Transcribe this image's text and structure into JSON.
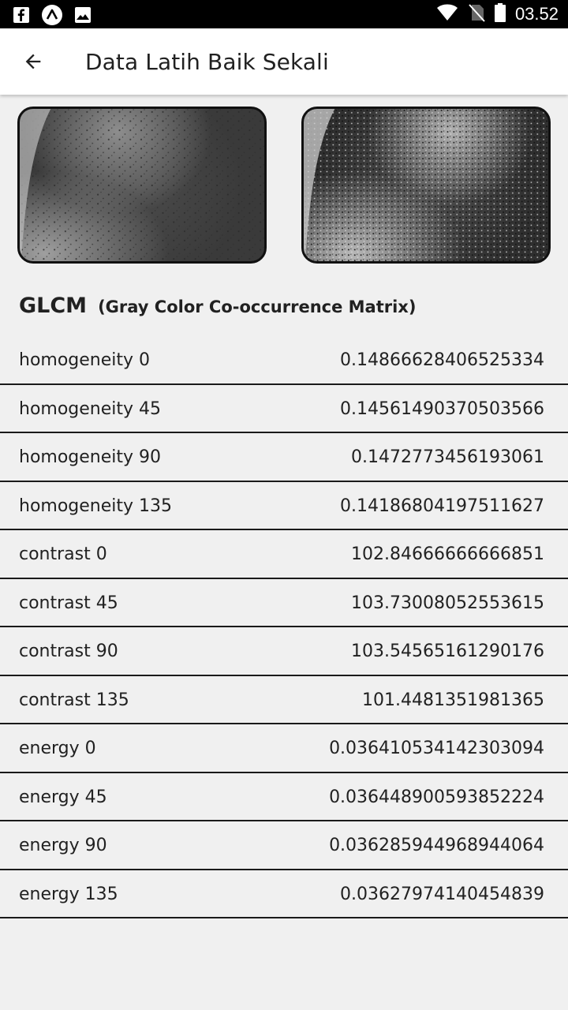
{
  "status_bar": {
    "time": "03.52",
    "icons_left": [
      "facebook-icon",
      "app-icon",
      "image-icon"
    ],
    "icons_right": [
      "wifi-icon",
      "no-sim-icon",
      "battery-icon"
    ]
  },
  "app_bar": {
    "back_icon": "arrow-left-icon",
    "title": "Data Latih Baik Sekali"
  },
  "images": [
    "original-image",
    "processed-image"
  ],
  "section": {
    "title": "GLCM",
    "subtitle": "(Gray Color Co-occurrence Matrix)"
  },
  "rows": [
    {
      "label": "homogeneity 0",
      "value": "0.14866628406525334"
    },
    {
      "label": "homogeneity 45",
      "value": "0.14561490370503566"
    },
    {
      "label": "homogeneity 90",
      "value": "0.1472773456193061"
    },
    {
      "label": "homogeneity 135",
      "value": "0.14186804197511627"
    },
    {
      "label": "contrast 0",
      "value": "102.84666666666851"
    },
    {
      "label": "contrast 45",
      "value": "103.73008052553615"
    },
    {
      "label": "contrast 90",
      "value": "103.54565161290176"
    },
    {
      "label": "contrast 135",
      "value": "101.4481351981365"
    },
    {
      "label": "energy 0",
      "value": "0.036410534142303094"
    },
    {
      "label": "energy 45",
      "value": "0.036448900593852224"
    },
    {
      "label": "energy 90",
      "value": "0.036285944968944064"
    },
    {
      "label": "energy 135",
      "value": "0.03627974140454839"
    }
  ]
}
